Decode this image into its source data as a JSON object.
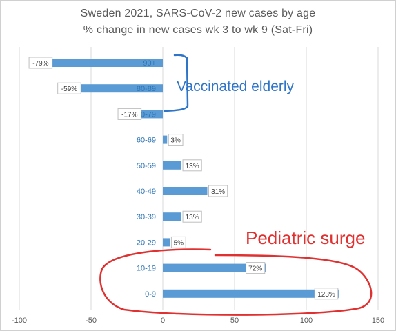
{
  "chart_data": {
    "type": "bar",
    "orientation": "horizontal",
    "title": "Sweden 2021, SARS-CoV-2 new cases by age",
    "subtitle": "% change in new cases wk 3 to wk 9 (Sat-Fri)",
    "categories": [
      "90+",
      "80-89",
      "70-79",
      "60-69",
      "50-59",
      "40-49",
      "30-39",
      "20-29",
      "10-19",
      "0-9"
    ],
    "values": [
      -79,
      -59,
      -17,
      3,
      13,
      31,
      13,
      5,
      72,
      123
    ],
    "data_labels": [
      "-79%",
      "-59%",
      "-17%",
      "3%",
      "13%",
      "31%",
      "13%",
      "5%",
      "72%",
      "123%"
    ],
    "xlim": [
      -100,
      150
    ],
    "xticks": [
      -100,
      -50,
      0,
      50,
      100,
      150
    ],
    "grid": "vertical",
    "bar_color": "#5b9bd5",
    "category_label_color": "#2e75b6",
    "annotations": [
      {
        "text": "Vaccinated elderly",
        "color": "#2e75c8"
      },
      {
        "text": "Pediatric surge",
        "color": "#e03030"
      }
    ]
  }
}
